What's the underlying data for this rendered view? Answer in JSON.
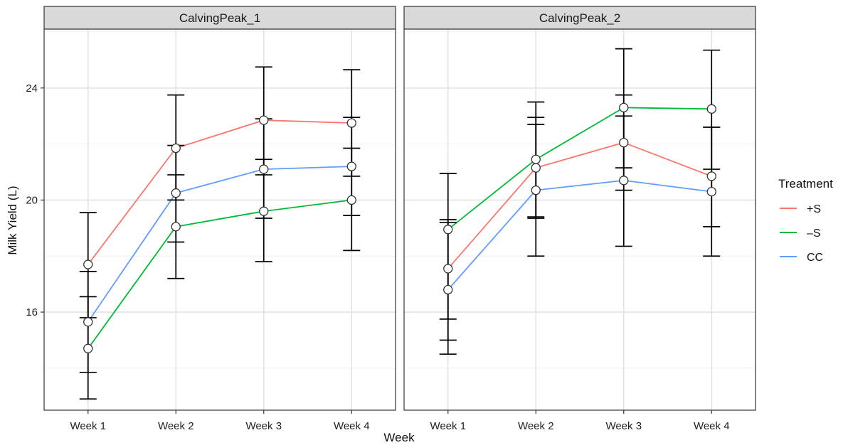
{
  "chart_data": {
    "type": "line",
    "facet_by": "CalvingPeak",
    "xlabel": "Week",
    "ylabel": "Milk Yield (L)",
    "categories": [
      "Week 1",
      "Week 2",
      "Week 3",
      "Week 4"
    ],
    "y_ticks": [
      16,
      20,
      24
    ],
    "ylim": [
      12.5,
      26.1
    ],
    "grid": true,
    "legend": {
      "title": "Treatment",
      "position": "right",
      "entries": [
        {
          "name": "+S",
          "color": "#F8766D"
        },
        {
          "name": "–S",
          "color": "#00BA38"
        },
        {
          "name": "CC",
          "color": "#619CFF"
        }
      ]
    },
    "panels": [
      {
        "title": "CalvingPeak_1",
        "series": [
          {
            "name": "+S",
            "color": "#F8766D",
            "values": [
              17.7,
              21.85,
              22.85,
              22.75
            ],
            "lower": [
              15.8,
              20.0,
              20.9,
              20.85
            ],
            "upper": [
              19.55,
              23.75,
              24.75,
              24.65
            ]
          },
          {
            "name": "–S",
            "color": "#00BA38",
            "values": [
              14.7,
              19.05,
              19.6,
              20.0
            ],
            "lower": [
              12.9,
              17.2,
              17.8,
              18.2
            ],
            "upper": [
              16.55,
              20.9,
              21.45,
              21.85
            ]
          },
          {
            "name": "CC",
            "color": "#619CFF",
            "values": [
              15.65,
              20.25,
              21.1,
              21.2
            ],
            "lower": [
              13.85,
              18.5,
              19.35,
              19.45
            ],
            "upper": [
              17.45,
              21.95,
              22.9,
              22.95
            ]
          }
        ]
      },
      {
        "title": "CalvingPeak_2",
        "series": [
          {
            "name": "+S",
            "color": "#F8766D",
            "values": [
              17.55,
              21.15,
              22.05,
              20.85
            ],
            "lower": [
              15.75,
              19.35,
              20.35,
              19.05
            ],
            "upper": [
              19.3,
              22.95,
              23.75,
              22.6
            ]
          },
          {
            "name": "–S",
            "color": "#00BA38",
            "values": [
              18.95,
              21.45,
              23.3,
              23.25
            ],
            "lower": [
              14.5,
              19.4,
              21.15,
              21.1
            ],
            "upper": [
              20.95,
              23.5,
              25.4,
              25.35
            ]
          },
          {
            "name": "CC",
            "color": "#619CFF",
            "values": [
              16.8,
              20.35,
              20.7,
              20.3
            ],
            "lower": [
              15.0,
              18.0,
              18.35,
              18.0
            ],
            "upper": [
              19.2,
              22.7,
              23.0,
              22.6
            ]
          }
        ]
      }
    ]
  }
}
